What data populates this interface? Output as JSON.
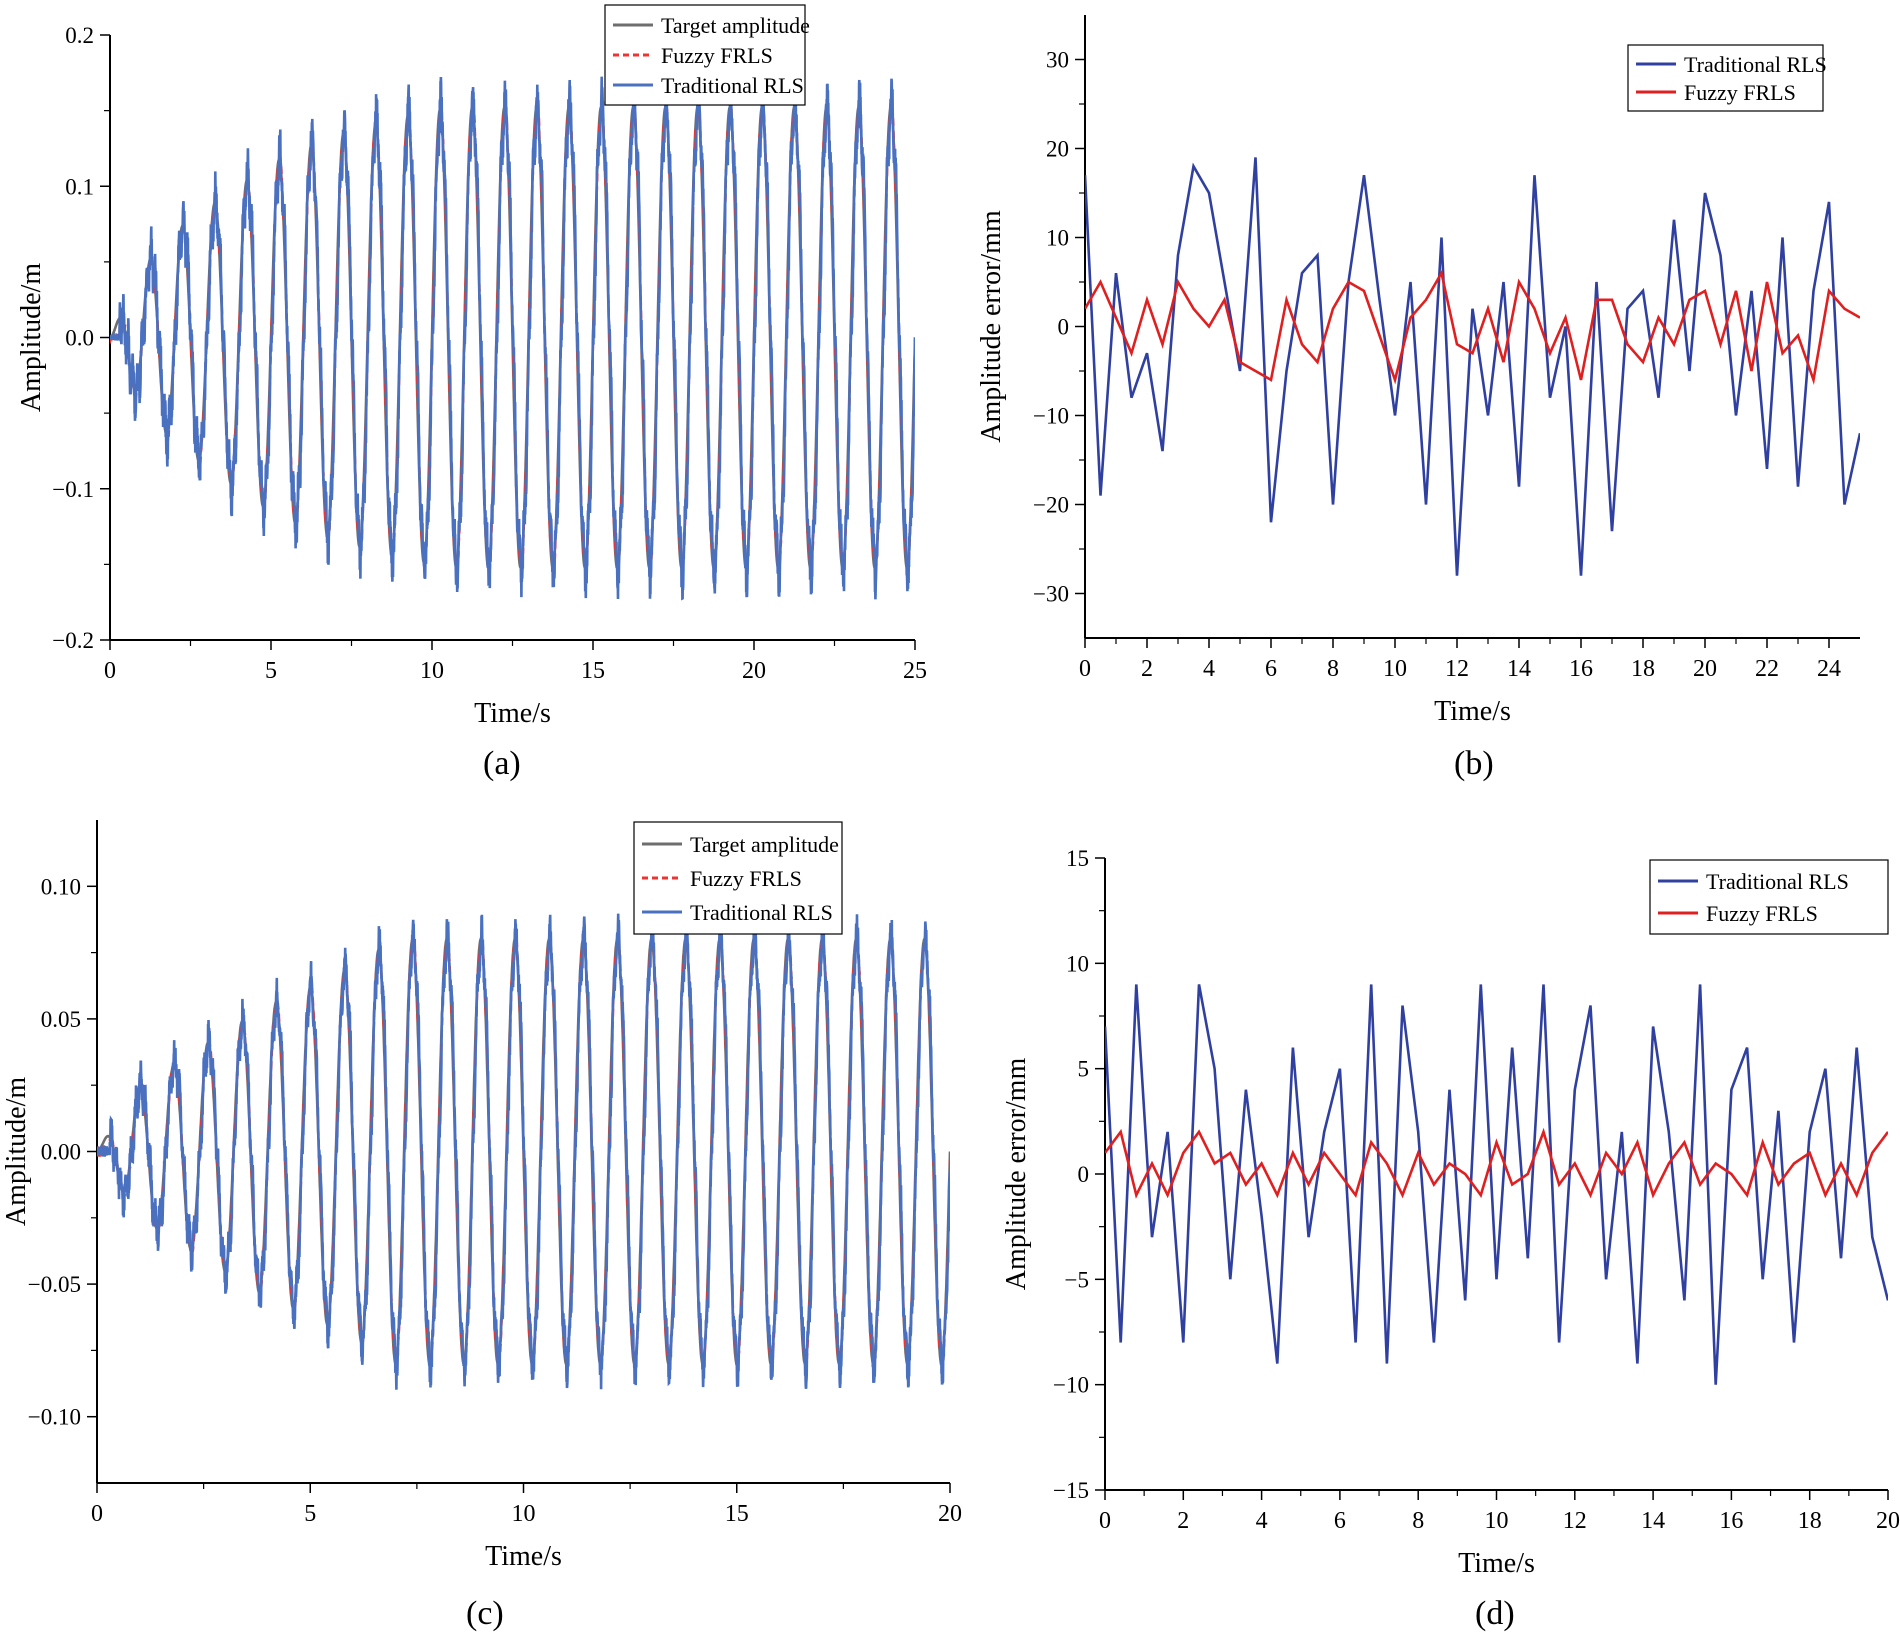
{
  "figure": {
    "captions": [
      "(a)",
      "(b)",
      "(c)",
      "(d)"
    ]
  },
  "chart_data": [
    {
      "panel": "(a)",
      "type": "line",
      "title": "",
      "xlabel": "Time/s",
      "ylabel": "Amplitude/m",
      "xlim": [
        0,
        25
      ],
      "ylim": [
        -0.2,
        0.2
      ],
      "xticks": [
        0,
        5,
        10,
        15,
        20,
        25
      ],
      "yticks": [
        -0.2,
        -0.1,
        0.0,
        0.1,
        0.2
      ],
      "ytick_labels": [
        "−0.2",
        "−0.1",
        "0.0",
        "0.1",
        "0.2"
      ],
      "legend": {
        "position": "top-center",
        "entries": [
          "Target amplitude",
          "Fuzzy FRLS",
          "Traditional RLS"
        ]
      },
      "series": [
        {
          "name": "Target amplitude",
          "color": "#6e6e6e",
          "style": "solid",
          "model": "sine",
          "frequency_hz": 1.0,
          "start_s": 0.0,
          "envelope_t": [
            0,
            1,
            2,
            3,
            4,
            5,
            6,
            7,
            8,
            9,
            10,
            11,
            25
          ],
          "envelope_a": [
            0.0,
            0.045,
            0.07,
            0.085,
            0.1,
            0.115,
            0.125,
            0.133,
            0.14,
            0.145,
            0.15,
            0.152,
            0.152
          ]
        },
        {
          "name": "Fuzzy FRLS",
          "color": "#ee3333",
          "style": "dashed",
          "model": "tracking",
          "mean_error_mm": 5
        },
        {
          "name": "Traditional RLS",
          "color": "#4a70c0",
          "style": "solid",
          "model": "tracking",
          "mean_error_mm": 20
        }
      ]
    },
    {
      "panel": "(b)",
      "type": "line",
      "title": "",
      "xlabel": "Time/s",
      "ylabel": "Amplitude error/mm",
      "xlim": [
        0,
        25
      ],
      "ylim": [
        -35,
        35
      ],
      "xticks": [
        0,
        2,
        4,
        6,
        8,
        10,
        12,
        14,
        16,
        18,
        20,
        22,
        24
      ],
      "yticks": [
        -30,
        -20,
        -10,
        0,
        10,
        20,
        30
      ],
      "ytick_labels": [
        "−30",
        "−20",
        "−10",
        "0",
        "10",
        "20",
        "30"
      ],
      "legend": {
        "position": "top-right",
        "entries": [
          "Traditional RLS",
          "Fuzzy FRLS"
        ]
      },
      "series": [
        {
          "name": "Traditional RLS",
          "color": "#3040a0",
          "x": [
            0,
            0.5,
            1,
            1.5,
            2,
            2.5,
            3,
            3.5,
            4,
            4.5,
            5,
            5.5,
            6,
            6.5,
            7,
            7.5,
            8,
            8.5,
            9,
            9.5,
            10,
            10.5,
            11,
            11.5,
            12,
            12.5,
            13,
            13.5,
            14,
            14.5,
            15,
            15.5,
            16,
            16.5,
            17,
            17.5,
            18,
            18.5,
            19,
            19.5,
            20,
            20.5,
            21,
            21.5,
            22,
            22.5,
            23,
            23.5,
            24,
            24.5,
            25
          ],
          "y": [
            17,
            -19,
            6,
            -8,
            -3,
            -14,
            8,
            18,
            15,
            5,
            -5,
            19,
            -22,
            -5,
            6,
            8,
            -20,
            5,
            17,
            3,
            -10,
            5,
            -20,
            10,
            -28,
            2,
            -10,
            5,
            -18,
            17,
            -8,
            0,
            -28,
            5,
            -23,
            2,
            4,
            -8,
            12,
            -5,
            15,
            8,
            -10,
            4,
            -16,
            10,
            -18,
            4,
            14,
            -20,
            -12
          ]
        },
        {
          "name": "Fuzzy FRLS",
          "color": "#e02020",
          "x": [
            0,
            0.5,
            1,
            1.5,
            2,
            2.5,
            3,
            3.5,
            4,
            4.5,
            5,
            5.5,
            6,
            6.5,
            7,
            7.5,
            8,
            8.5,
            9,
            9.5,
            10,
            10.5,
            11,
            11.5,
            12,
            12.5,
            13,
            13.5,
            14,
            14.5,
            15,
            15.5,
            16,
            16.5,
            17,
            17.5,
            18,
            18.5,
            19,
            19.5,
            20,
            20.5,
            21,
            21.5,
            22,
            22.5,
            23,
            23.5,
            24,
            24.5,
            25
          ],
          "y": [
            2,
            5,
            1,
            -3,
            3,
            -2,
            5,
            2,
            0,
            3,
            -4,
            -5,
            -6,
            3,
            -2,
            -4,
            2,
            5,
            4,
            -1,
            -6,
            1,
            3,
            6,
            -2,
            -3,
            2,
            -4,
            5,
            2,
            -3,
            1,
            -6,
            3,
            3,
            -2,
            -4,
            1,
            -2,
            3,
            4,
            -2,
            4,
            -5,
            5,
            -3,
            -1,
            -6,
            4,
            2,
            1
          ]
        }
      ]
    },
    {
      "panel": "(c)",
      "type": "line",
      "title": "",
      "xlabel": "Time/s",
      "ylabel": "Amplitude/m",
      "xlim": [
        0,
        20
      ],
      "ylim": [
        -0.125,
        0.125
      ],
      "xticks": [
        0,
        5,
        10,
        15,
        20
      ],
      "yticks": [
        -0.1,
        -0.05,
        0.0,
        0.05,
        0.1
      ],
      "ytick_labels": [
        "−0.10",
        "−0.05",
        "0.00",
        "0.05",
        "0.10"
      ],
      "legend": {
        "position": "top-center",
        "entries": [
          "Target amplitude",
          "Fuzzy  FRLS",
          "Traditional RLS"
        ]
      },
      "series": [
        {
          "name": "Target amplitude",
          "color": "#6e6e6e",
          "style": "solid",
          "model": "sine",
          "frequency_hz": 1.25,
          "start_s": 0.0,
          "envelope_t": [
            0,
            1,
            2,
            3,
            4,
            5,
            6,
            7,
            20
          ],
          "envelope_a": [
            0.0,
            0.025,
            0.035,
            0.045,
            0.055,
            0.062,
            0.07,
            0.08,
            0.08
          ]
        },
        {
          "name": "Fuzzy  FRLS",
          "color": "#ee3333",
          "style": "dashed",
          "model": "tracking",
          "mean_error_mm": 2
        },
        {
          "name": "Traditional RLS",
          "color": "#4a70c0",
          "style": "solid",
          "model": "tracking",
          "mean_error_mm": 9
        }
      ]
    },
    {
      "panel": "(d)",
      "type": "line",
      "title": "",
      "xlabel": "Time/s",
      "ylabel": "Amplitude error/mm",
      "xlim": [
        0,
        20
      ],
      "ylim": [
        -15,
        15
      ],
      "xticks": [
        0,
        2,
        4,
        6,
        8,
        10,
        12,
        14,
        16,
        18,
        20
      ],
      "yticks": [
        -15,
        -10,
        -5,
        0,
        5,
        10,
        15
      ],
      "ytick_labels": [
        "−15",
        "−10",
        "−5",
        "0",
        "5",
        "10",
        "15"
      ],
      "legend": {
        "position": "top-right",
        "entries": [
          "Traditional RLS",
          "Fuzzy FRLS"
        ]
      },
      "series": [
        {
          "name": "Traditional RLS",
          "color": "#3040a0",
          "x": [
            0,
            0.4,
            0.8,
            1.2,
            1.6,
            2,
            2.4,
            2.8,
            3.2,
            3.6,
            4,
            4.4,
            4.8,
            5.2,
            5.6,
            6,
            6.4,
            6.8,
            7.2,
            7.6,
            8,
            8.4,
            8.8,
            9.2,
            9.6,
            10,
            10.4,
            10.8,
            11.2,
            11.6,
            12,
            12.4,
            12.8,
            13.2,
            13.6,
            14,
            14.4,
            14.8,
            15.2,
            15.6,
            16,
            16.4,
            16.8,
            17.2,
            17.6,
            18,
            18.4,
            18.8,
            19.2,
            19.6,
            20
          ],
          "y": [
            7,
            -8,
            9,
            -3,
            2,
            -8,
            9,
            5,
            -5,
            4,
            -2,
            -9,
            6,
            -3,
            2,
            5,
            -8,
            9,
            -9,
            8,
            2,
            -8,
            4,
            -6,
            9,
            -5,
            6,
            -4,
            9,
            -8,
            4,
            8,
            -5,
            2,
            -9,
            7,
            2,
            -6,
            9,
            -10,
            4,
            6,
            -5,
            3,
            -8,
            2,
            5,
            -4,
            6,
            -3,
            -6
          ]
        },
        {
          "name": "Fuzzy FRLS",
          "color": "#e02020",
          "x": [
            0,
            0.4,
            0.8,
            1.2,
            1.6,
            2,
            2.4,
            2.8,
            3.2,
            3.6,
            4,
            4.4,
            4.8,
            5.2,
            5.6,
            6,
            6.4,
            6.8,
            7.2,
            7.6,
            8,
            8.4,
            8.8,
            9.2,
            9.6,
            10,
            10.4,
            10.8,
            11.2,
            11.6,
            12,
            12.4,
            12.8,
            13.2,
            13.6,
            14,
            14.4,
            14.8,
            15.2,
            15.6,
            16,
            16.4,
            16.8,
            17.2,
            17.6,
            18,
            18.4,
            18.8,
            19.2,
            19.6,
            20
          ],
          "y": [
            1,
            2,
            -1,
            0.5,
            -1,
            1,
            2,
            0.5,
            1,
            -0.5,
            0.5,
            -1,
            1,
            -0.5,
            1,
            0,
            -1,
            1.5,
            0.5,
            -1,
            1,
            -0.5,
            0.5,
            0,
            -1,
            1.5,
            -0.5,
            0,
            2,
            -0.5,
            0.5,
            -1,
            1,
            0,
            1.5,
            -1,
            0.5,
            1.5,
            -0.5,
            0.5,
            0,
            -1,
            1.5,
            -0.5,
            0.5,
            1,
            -1,
            0.5,
            -1,
            1,
            2
          ]
        }
      ]
    }
  ]
}
